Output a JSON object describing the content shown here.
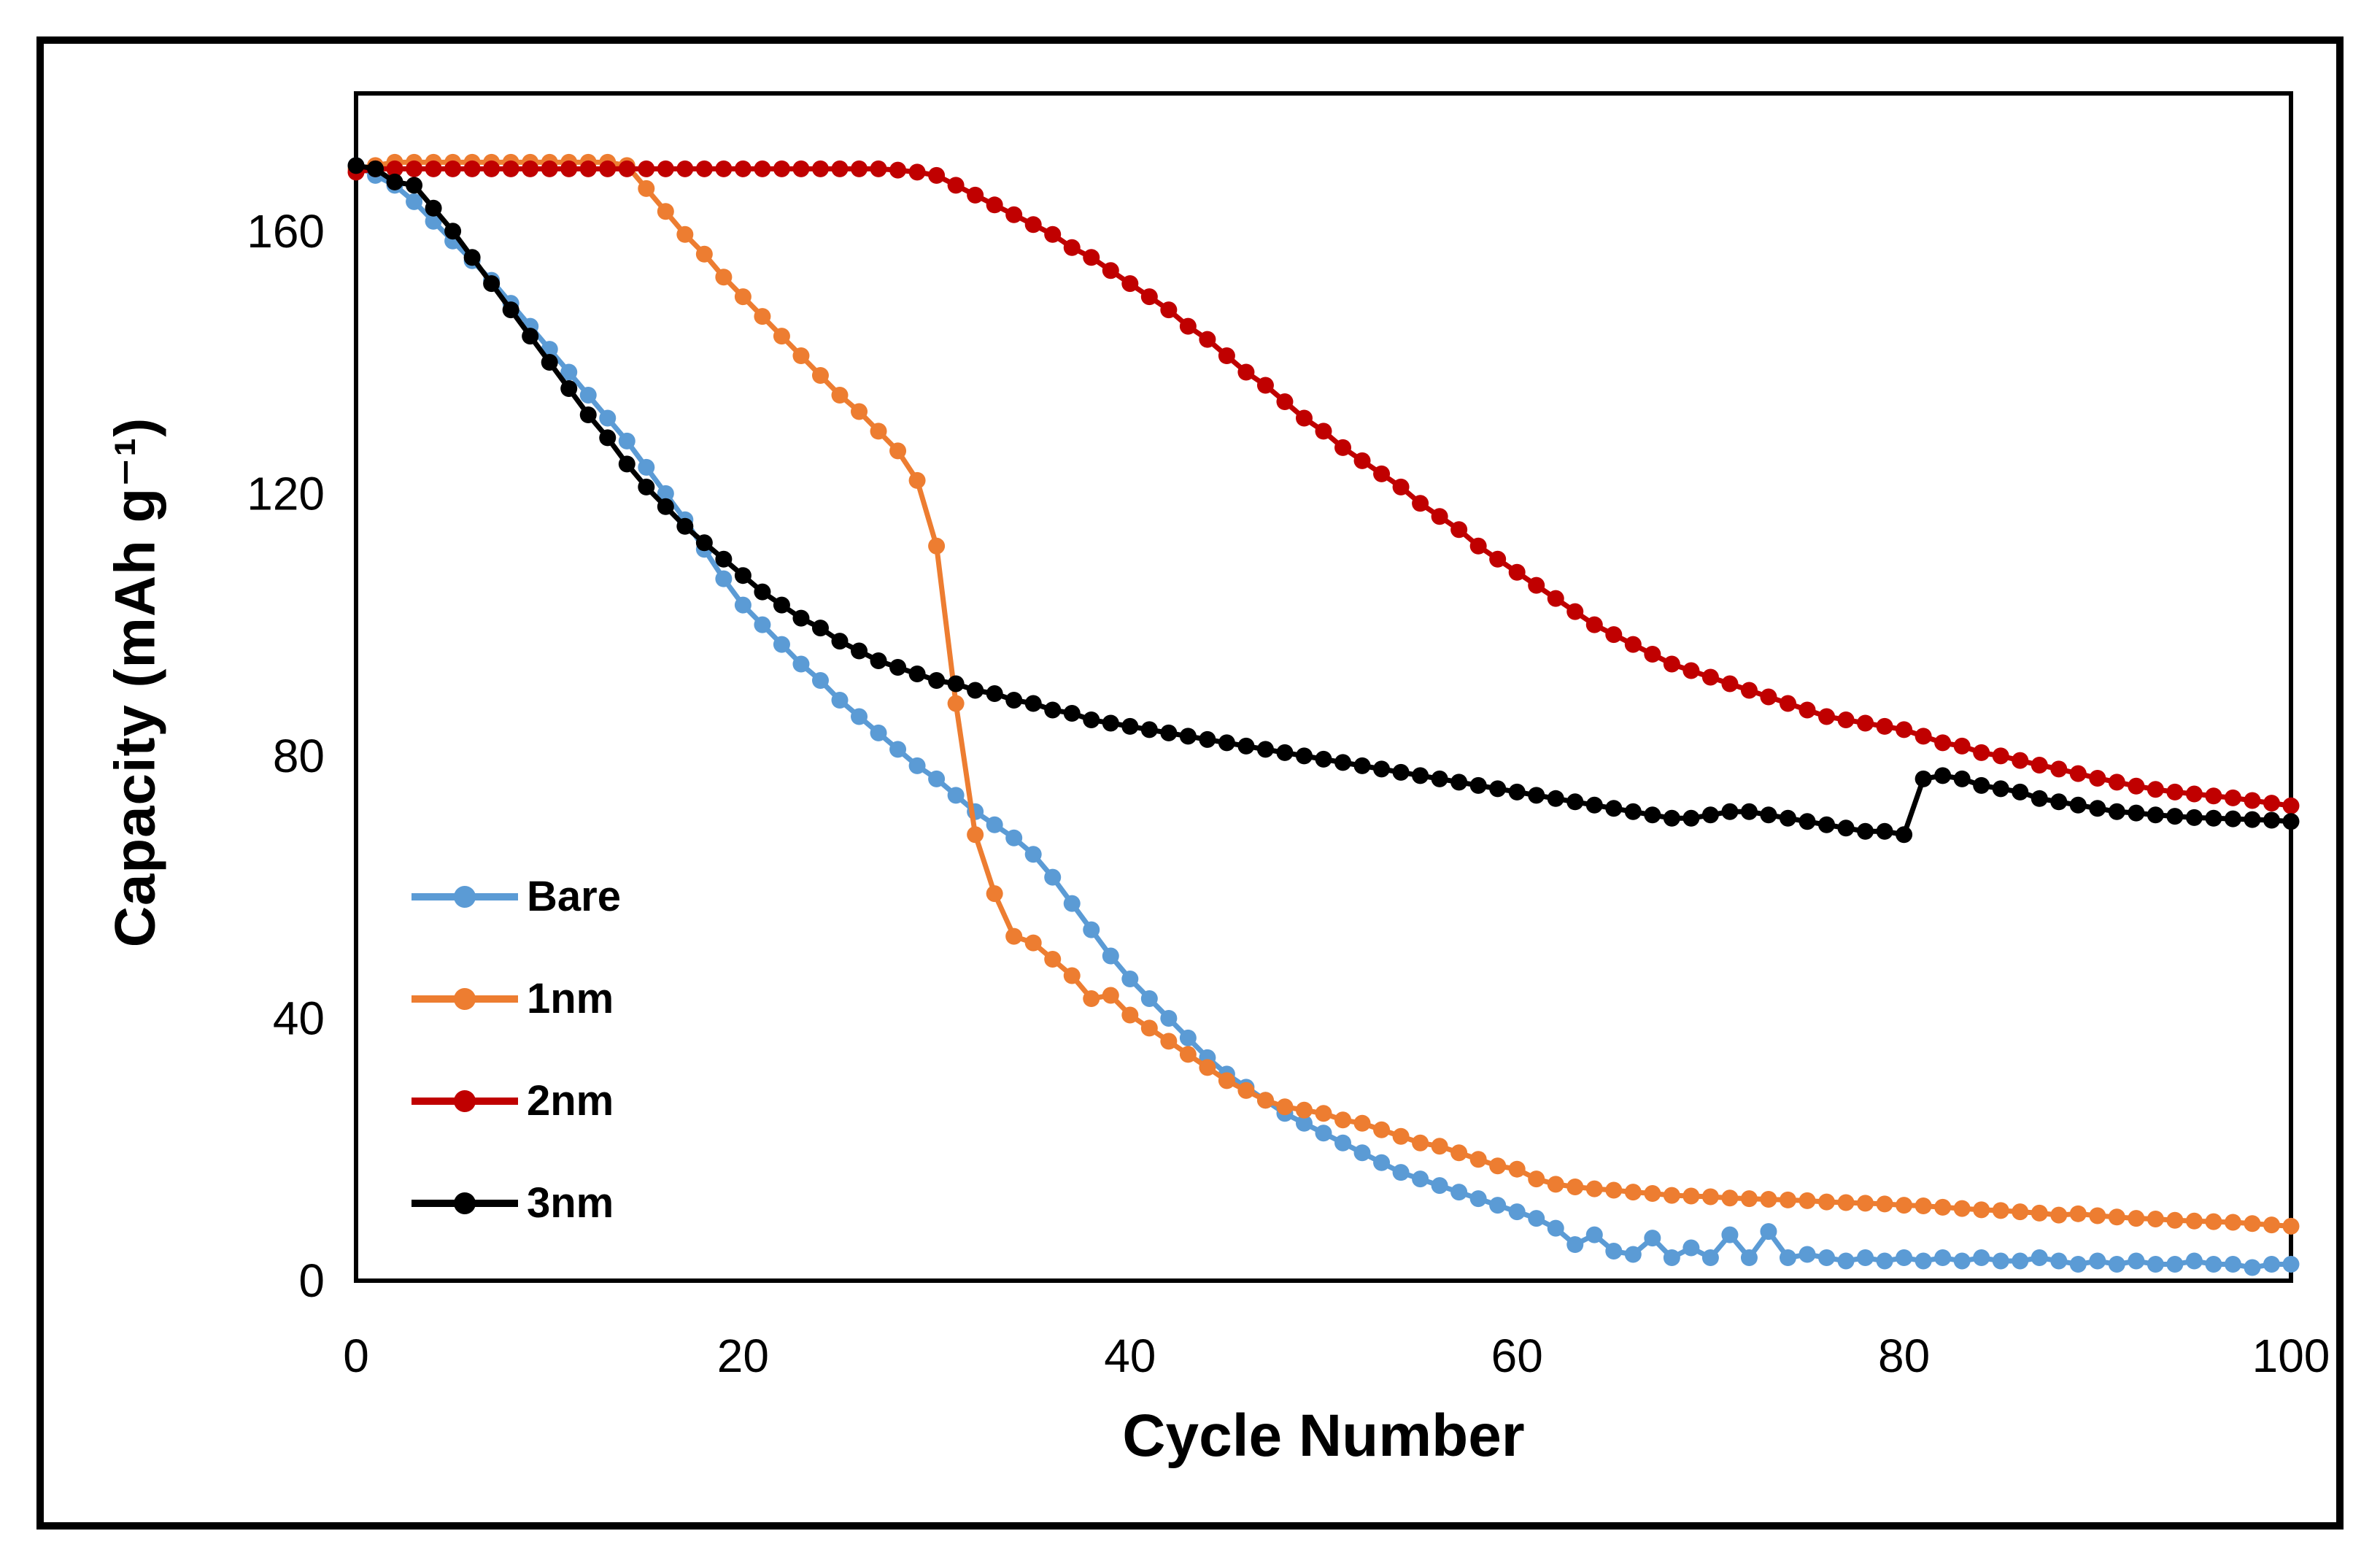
{
  "figure": {
    "background": "#ffffff",
    "frame_color": "#000000"
  },
  "chart_data": {
    "type": "line",
    "title": "",
    "xlabel": "Cycle Number",
    "ylabel": "Capacity (mAh g⁻¹)",
    "xlim": [
      0,
      100
    ],
    "ylim": [
      0,
      181
    ],
    "xticks": [
      0,
      20,
      40,
      60,
      80,
      100
    ],
    "yticks": [
      0,
      40,
      80,
      120,
      160
    ],
    "grid": false,
    "marker": "circle",
    "legend_position": "inside-left-middle",
    "cycles": [
      0,
      1,
      2,
      3,
      4,
      5,
      6,
      7,
      8,
      9,
      10,
      11,
      12,
      13,
      14,
      15,
      16,
      17,
      18,
      19,
      20,
      21,
      22,
      23,
      24,
      25,
      26,
      27,
      28,
      29,
      30,
      31,
      32,
      33,
      34,
      35,
      36,
      37,
      38,
      39,
      40,
      41,
      42,
      43,
      44,
      45,
      46,
      47,
      48,
      49,
      50,
      51,
      52,
      53,
      54,
      55,
      56,
      57,
      58,
      59,
      60,
      61,
      62,
      63,
      64,
      65,
      66,
      67,
      68,
      69,
      70,
      71,
      72,
      73,
      74,
      75,
      76,
      77,
      78,
      79,
      80,
      81,
      82,
      83,
      84,
      85,
      86,
      87,
      88,
      89,
      90,
      91,
      92,
      93,
      94,
      95,
      96,
      97,
      98,
      99,
      100
    ],
    "series": [
      {
        "name": "Bare",
        "color": "#5B9BD5",
        "values": [
          170,
          168.5,
          167,
          164.5,
          161.5,
          158.5,
          155.5,
          152.5,
          149,
          145.5,
          142,
          138.5,
          135,
          131.5,
          128,
          124,
          120,
          116,
          111.5,
          107,
          103,
          100,
          97,
          94,
          91.5,
          88.5,
          86,
          83.5,
          81,
          78.5,
          76.5,
          74,
          71.5,
          69.5,
          67.5,
          65,
          61.5,
          57.5,
          53.5,
          49.5,
          46,
          43,
          40,
          37,
          34,
          31.5,
          29.5,
          27.5,
          25.5,
          24,
          22.5,
          21,
          19.5,
          18,
          16.5,
          15.5,
          14.5,
          13.5,
          12.5,
          11.5,
          10.5,
          9.5,
          8,
          5.5,
          7,
          4.5,
          4,
          6.5,
          3.5,
          5,
          3.5,
          7,
          3.5,
          7.5,
          3.5,
          4,
          3.5,
          3,
          3.5,
          3,
          3.5,
          3,
          3.5,
          3,
          3.5,
          3,
          3,
          3.5,
          3,
          2.5,
          3,
          2.5,
          3,
          2.5,
          2.5,
          3,
          2.5,
          2.5,
          2,
          2.5,
          2.5
        ]
      },
      {
        "name": "1nm",
        "color": "#ED7D31",
        "values": [
          169.5,
          170,
          170.5,
          170.5,
          170.5,
          170.5,
          170.5,
          170.5,
          170.5,
          170.5,
          170.5,
          170.5,
          170.5,
          170.5,
          170,
          166.5,
          163,
          159.5,
          156.5,
          153,
          150,
          147,
          144,
          141,
          138,
          135,
          132.5,
          129.5,
          126.5,
          122,
          112,
          88,
          68,
          59,
          52.5,
          51.5,
          49,
          46.5,
          43,
          43.5,
          40.5,
          38.5,
          36.5,
          34.5,
          32.5,
          30.5,
          29,
          27.5,
          26.5,
          26,
          25.5,
          24.5,
          24,
          23,
          22,
          21,
          20.5,
          19.5,
          18.5,
          17.5,
          17,
          15.5,
          14.7,
          14.3,
          14,
          13.8,
          13.5,
          13.3,
          13,
          12.9,
          12.8,
          12.6,
          12.5,
          12.4,
          12.3,
          12.2,
          12,
          11.9,
          11.8,
          11.7,
          11.5,
          11.4,
          11.2,
          11,
          10.8,
          10.7,
          10.5,
          10.3,
          10,
          10.2,
          9.9,
          9.7,
          9.5,
          9.4,
          9.2,
          9.1,
          9,
          8.9,
          8.7,
          8.5,
          8.3
        ]
      },
      {
        "name": "2nm",
        "color": "#C00000",
        "values": [
          169,
          169.5,
          169.5,
          169.5,
          169.5,
          169.5,
          169.5,
          169.5,
          169.5,
          169.5,
          169.5,
          169.5,
          169.5,
          169.5,
          169.5,
          169.5,
          169.5,
          169.5,
          169.5,
          169.5,
          169.5,
          169.5,
          169.5,
          169.5,
          169.5,
          169.5,
          169.5,
          169.5,
          169.3,
          169,
          168.5,
          167,
          165.5,
          164,
          162.5,
          161,
          159.5,
          157.5,
          156,
          154,
          152,
          150,
          148,
          145.5,
          143.5,
          141,
          138.5,
          136.5,
          134,
          131.5,
          129.5,
          127,
          125,
          123,
          121,
          118.5,
          116.5,
          114.5,
          112,
          110,
          108,
          106,
          104,
          102,
          100,
          98.5,
          97,
          95.5,
          94,
          93,
          92,
          91,
          90,
          89,
          88,
          87,
          86,
          85.5,
          85,
          84.5,
          84,
          83,
          82,
          81.5,
          80.5,
          80,
          79.3,
          78.6,
          78,
          77.3,
          76.6,
          76,
          75.4,
          74.9,
          74.5,
          74.2,
          73.9,
          73.6,
          73.2,
          72.8,
          72.4
        ]
      },
      {
        "name": "3nm",
        "color": "#000000",
        "values": [
          170,
          169.5,
          167.5,
          167,
          163.5,
          160,
          156,
          152,
          148,
          144,
          140,
          136,
          132,
          128.5,
          124.5,
          121,
          118,
          115,
          112.5,
          110,
          107.5,
          105,
          103,
          101,
          99.5,
          97.5,
          96,
          94.5,
          93.5,
          92.5,
          91.5,
          91,
          90,
          89.5,
          88.5,
          88,
          87,
          86.5,
          85.5,
          85,
          84.5,
          84,
          83.5,
          83,
          82.5,
          82,
          81.5,
          81,
          80.5,
          80,
          79.5,
          79,
          78.5,
          78,
          77.5,
          77,
          76.5,
          76,
          75.5,
          75,
          74.5,
          74,
          73.5,
          73,
          72.5,
          72,
          71.5,
          71,
          70.5,
          70.5,
          71,
          71.5,
          71.5,
          71,
          70.5,
          70,
          69.5,
          69,
          68.5,
          68.5,
          68,
          76.5,
          77,
          76.5,
          75.5,
          75,
          74.5,
          73.5,
          73,
          72.5,
          72,
          71.5,
          71.3,
          71,
          70.8,
          70.6,
          70.5,
          70.4,
          70.3,
          70.2,
          70
        ]
      }
    ]
  }
}
